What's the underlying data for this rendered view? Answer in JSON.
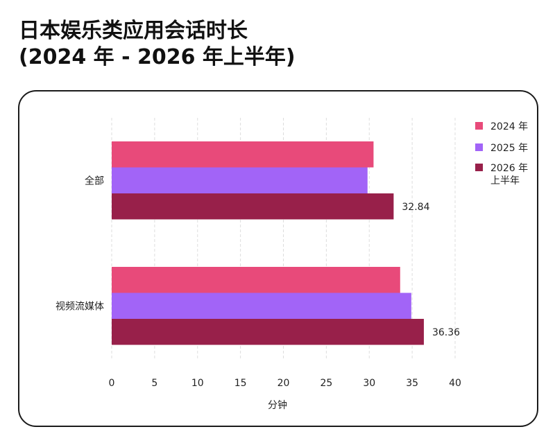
{
  "title_line1": "日本娱乐类应用会话时长",
  "title_line2": "(2024 年 - 2026 年上半年)",
  "chart_data": {
    "type": "bar",
    "orientation": "horizontal",
    "categories": [
      "全部",
      "视频流媒体"
    ],
    "series": [
      {
        "name": "2024 年",
        "color": "#e84a7a",
        "values": [
          30.5,
          33.6
        ]
      },
      {
        "name": "2025 年",
        "color": "#a264f7",
        "values": [
          29.8,
          34.9
        ]
      },
      {
        "name": "2026 年上半年",
        "color": "#98204a",
        "values": [
          32.84,
          36.36
        ]
      }
    ],
    "legend_labels": [
      [
        "2024 年"
      ],
      [
        "2025 年"
      ],
      [
        "2026 年",
        "上半年"
      ]
    ],
    "data_labels": [
      {
        "series": 2,
        "category": 0,
        "text": "32.84"
      },
      {
        "series": 2,
        "category": 1,
        "text": "36.36"
      }
    ],
    "xlabel": "分钟",
    "ylabel": "",
    "xlim": [
      0,
      40
    ],
    "xticks": [
      0,
      5,
      10,
      15,
      20,
      25,
      30,
      35,
      40
    ],
    "grid": "vertical",
    "legend_position": "right"
  }
}
